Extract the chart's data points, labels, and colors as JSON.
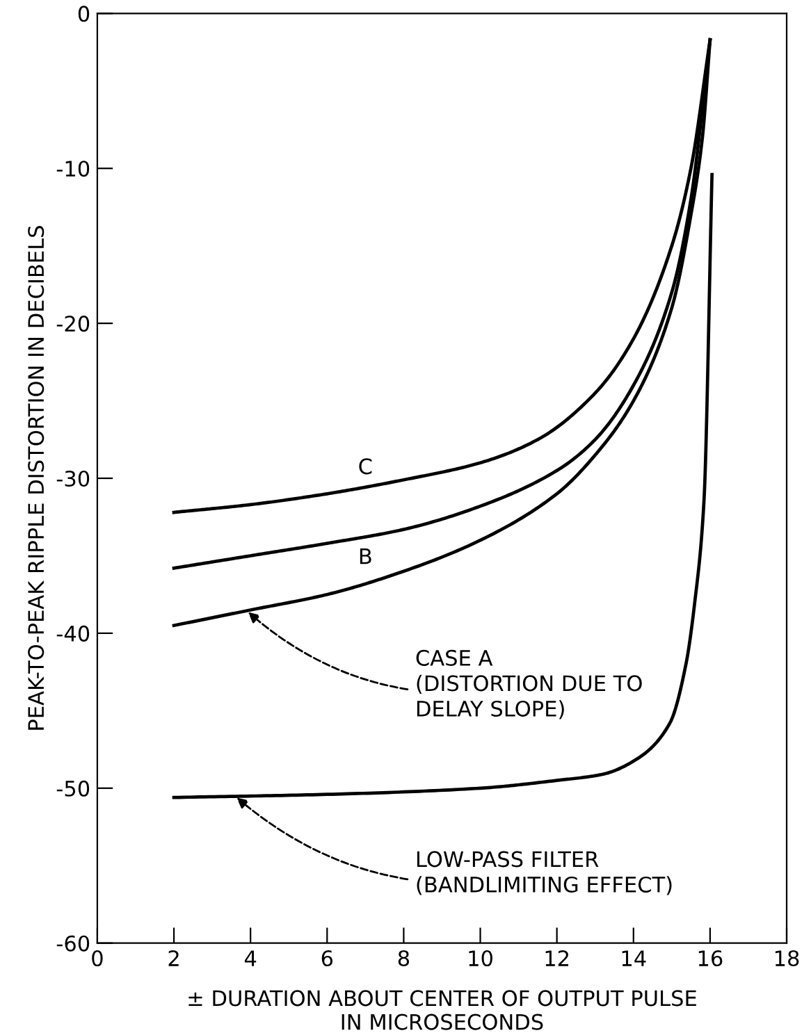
{
  "chart_data": {
    "type": "line",
    "xlabel": "± DURATION ABOUT CENTER OF OUTPUT PULSE\nIN MICROSECONDS",
    "ylabel": "PEAK-TO-PEAK RIPPLE DISTORTION IN DECIBELS",
    "xlim": [
      0,
      18
    ],
    "xticks": [
      0,
      2,
      4,
      6,
      8,
      10,
      12,
      14,
      16,
      18
    ],
    "ylim": [
      -60,
      0
    ],
    "yticks": [
      -60,
      -50,
      -40,
      -30,
      -20,
      -10,
      0
    ],
    "grid": false,
    "legend": false,
    "marker": "none",
    "line_style": "solid",
    "series": [
      {
        "name": "C",
        "color": "#000000",
        "x": [
          2,
          4,
          6,
          8,
          10,
          11.5,
          13,
          14,
          15,
          15.5,
          16
        ],
        "values": [
          -32.2,
          -31.7,
          -31,
          -30.1,
          -29,
          -27.5,
          -24.5,
          -21,
          -15,
          -10,
          -1.7
        ]
      },
      {
        "name": "B",
        "color": "#000000",
        "x": [
          2,
          4,
          6,
          8,
          10,
          12,
          13,
          14,
          15,
          15.5,
          16
        ],
        "values": [
          -35.8,
          -35,
          -34.2,
          -33.3,
          -31.8,
          -29.5,
          -27.5,
          -24,
          -18,
          -12,
          -1.7
        ]
      },
      {
        "name": "CASE A\n(DISTORTION DUE TO\nDELAY SLOPE)",
        "color": "#000000",
        "x": [
          2,
          4,
          6,
          8,
          10,
          12,
          13,
          14,
          15,
          15.5,
          15.8,
          16
        ],
        "values": [
          -39.5,
          -38.5,
          -37.5,
          -36,
          -34,
          -31,
          -28.5,
          -25,
          -19,
          -13,
          -8,
          -1.7
        ]
      },
      {
        "name": "LOW-PASS FILTER\n(BANDLIMITING EFFECT)",
        "color": "#000000",
        "x": [
          2,
          6,
          10,
          12,
          13.2,
          14.1,
          14.95,
          15.37,
          15.6,
          15.84,
          16.05
        ],
        "values": [
          -50.6,
          -50.4,
          -50,
          -49.5,
          -49.1,
          -48.1,
          -45.8,
          -42,
          -38,
          -31.5,
          -10.4
        ]
      }
    ]
  }
}
